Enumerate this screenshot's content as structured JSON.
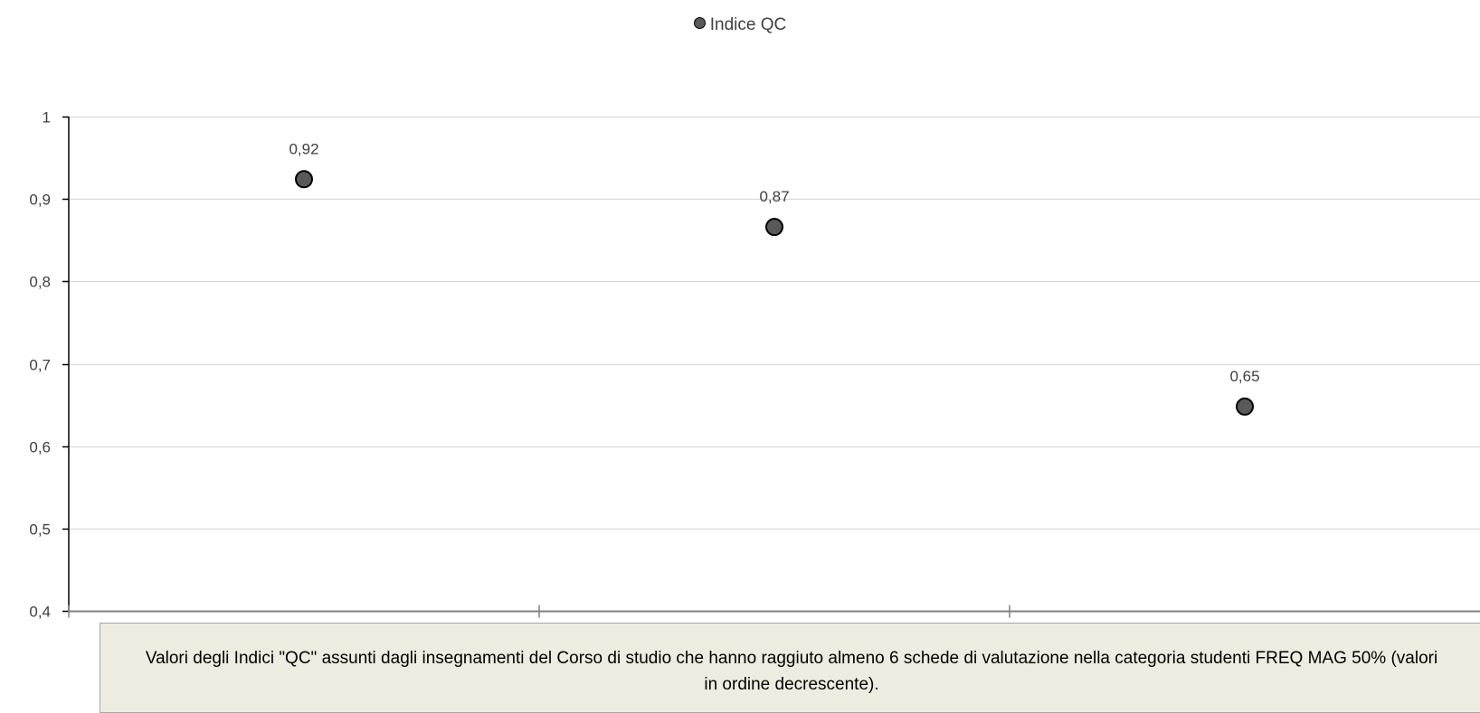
{
  "chart_data": {
    "type": "scatter",
    "legend": {
      "entries": [
        "Indice QC"
      ],
      "placement": "top-center"
    },
    "series": [
      {
        "name": "Indice QC",
        "x": [
          1,
          2,
          3
        ],
        "values": [
          0.924,
          0.866,
          0.648
        ],
        "labels": [
          "0,92",
          "0,87",
          "0,65"
        ],
        "marker_fill": "#595959",
        "marker_edge": "#000000"
      }
    ],
    "ylim": [
      0.4,
      1
    ],
    "yticks": [
      1,
      0.9,
      0.8,
      0.7,
      0.6,
      0.5,
      0.4
    ],
    "ytick_labels": [
      "1",
      "0,9",
      "0,8",
      "0,7",
      "0,6",
      "0,5",
      "0,4"
    ],
    "grid": true,
    "grid_color": "#d9d9d9",
    "xlabel": "",
    "ylabel": "",
    "caption": "Valori degli Indici \"QC\" assunti dagli insegnamenti del Corso di studio che hanno raggiuto almeno 6 schede di valutazione nella categoria studenti FREQ MAG 50% (valori in ordine decrescente)."
  }
}
